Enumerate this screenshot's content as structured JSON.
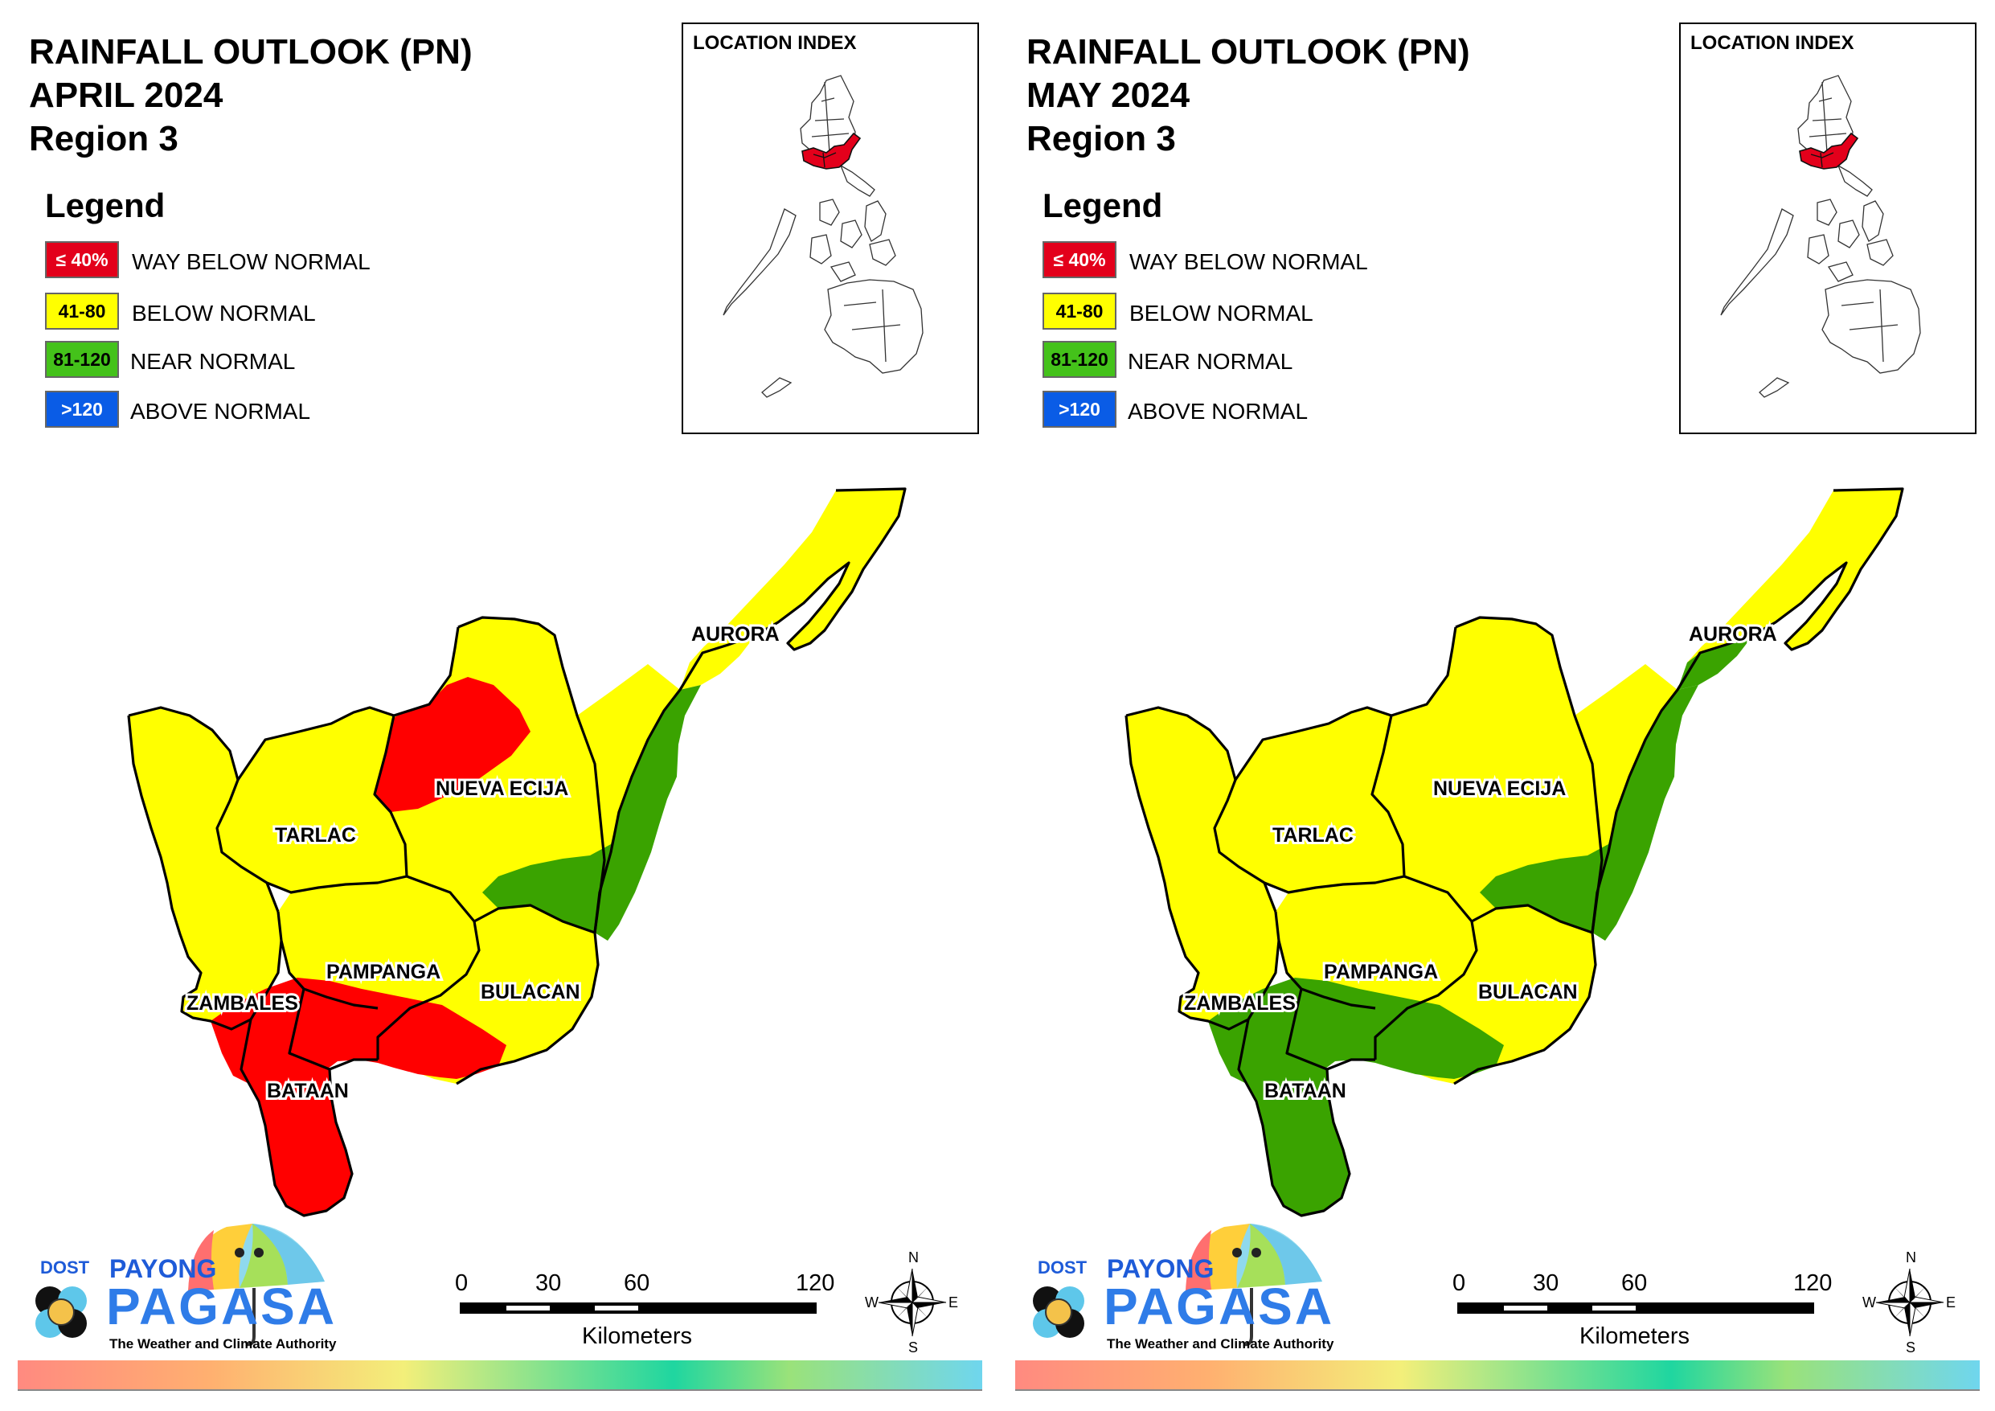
{
  "panels": [
    {
      "title": "RAINFALL OUTLOOK (PN)",
      "month": "APRIL 2024",
      "region": "Region 3",
      "fills": {
        "aurora_north": "#ffff00",
        "aurora_mid": "#ffff00",
        "aurora_south": "#3aa300",
        "nueva_ecija": "#ffff00",
        "ne_core": "#ff0000",
        "tarlac": "#ffff00",
        "zambales": "#ffff00",
        "pampanga": "#ffff00",
        "bulacan": "#ffff00",
        "south_band": "#ff0000",
        "bataan": "#ff0000",
        "east_green": "#3aa300"
      }
    },
    {
      "title": "RAINFALL OUTLOOK (PN)",
      "month": "MAY 2024",
      "region": "Region 3",
      "fills": {
        "aurora_north": "#ffff00",
        "aurora_mid": "#3aa300",
        "aurora_south": "#3aa300",
        "nueva_ecija": "#ffff00",
        "ne_core": "#ffff00",
        "tarlac": "#ffff00",
        "zambales": "#ffff00",
        "pampanga": "#ffff00",
        "bulacan": "#ffff00",
        "south_band": "#3aa300",
        "bataan": "#3aa300",
        "east_green": "#3aa300"
      }
    }
  ],
  "legend": {
    "title": "Legend",
    "items": [
      {
        "range": "≤ 40%",
        "label": "WAY BELOW NORMAL",
        "color": "#e3001b",
        "text_color": "#ffffff"
      },
      {
        "range": "41-80",
        "label": "BELOW NORMAL",
        "color": "#ffff00",
        "text_color": "#000000"
      },
      {
        "range": "81-120",
        "label": "NEAR NORMAL",
        "color": "#44c21a",
        "text_color": "#000000"
      },
      {
        "range": ">120",
        "label": "ABOVE NORMAL",
        "color": "#0a5ce6",
        "text_color": "#ffffff"
      }
    ]
  },
  "inset": {
    "title": "LOCATION INDEX"
  },
  "provinces": [
    "AURORA",
    "NUEVA ECIJA",
    "TARLAC",
    "PAMPANGA",
    "BULACAN",
    "ZAMBALES",
    "BATAAN"
  ],
  "logo": {
    "dost": "DOST",
    "payong": "PAYONG",
    "pagasa": "PAGASA",
    "tagline": "The Weather and Climate Authority"
  },
  "scale": {
    "ticks": [
      "0",
      "30",
      "60",
      "120"
    ],
    "unit": "Kilometers"
  },
  "compass": {
    "n": "N",
    "s": "S",
    "e": "E",
    "w": "W"
  }
}
